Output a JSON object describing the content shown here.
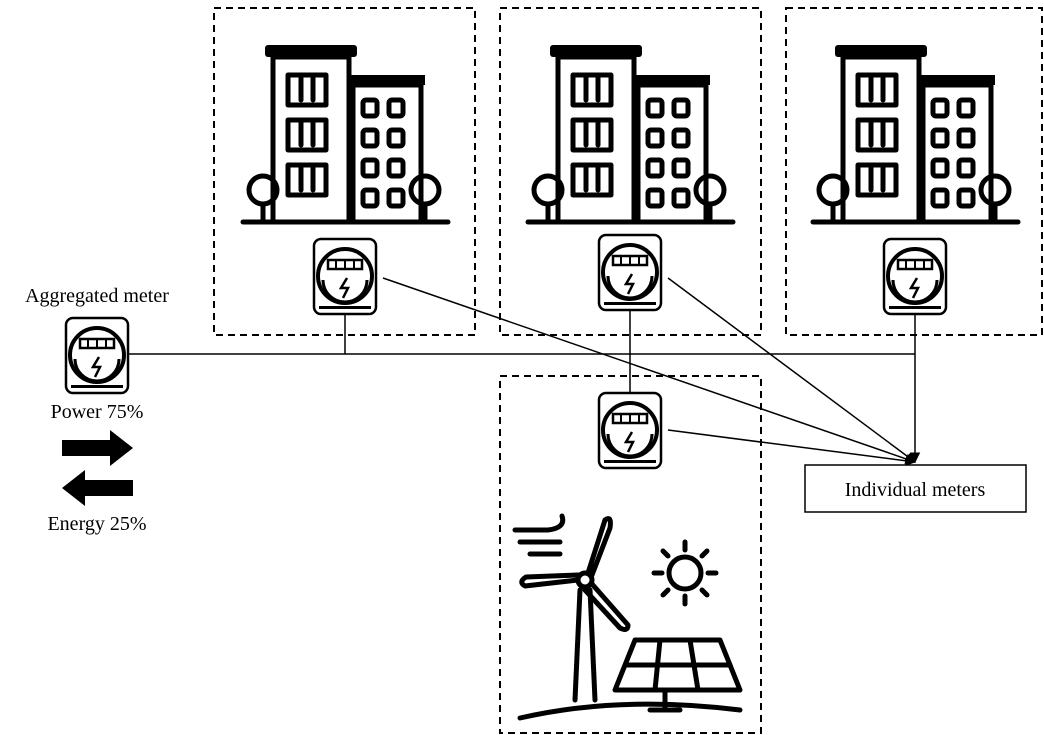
{
  "aggregated_meter": {
    "label": "Aggregated meter",
    "power": "Power 75%",
    "energy": "Energy 25%"
  },
  "individual_meters": {
    "label": "Individual meters"
  }
}
